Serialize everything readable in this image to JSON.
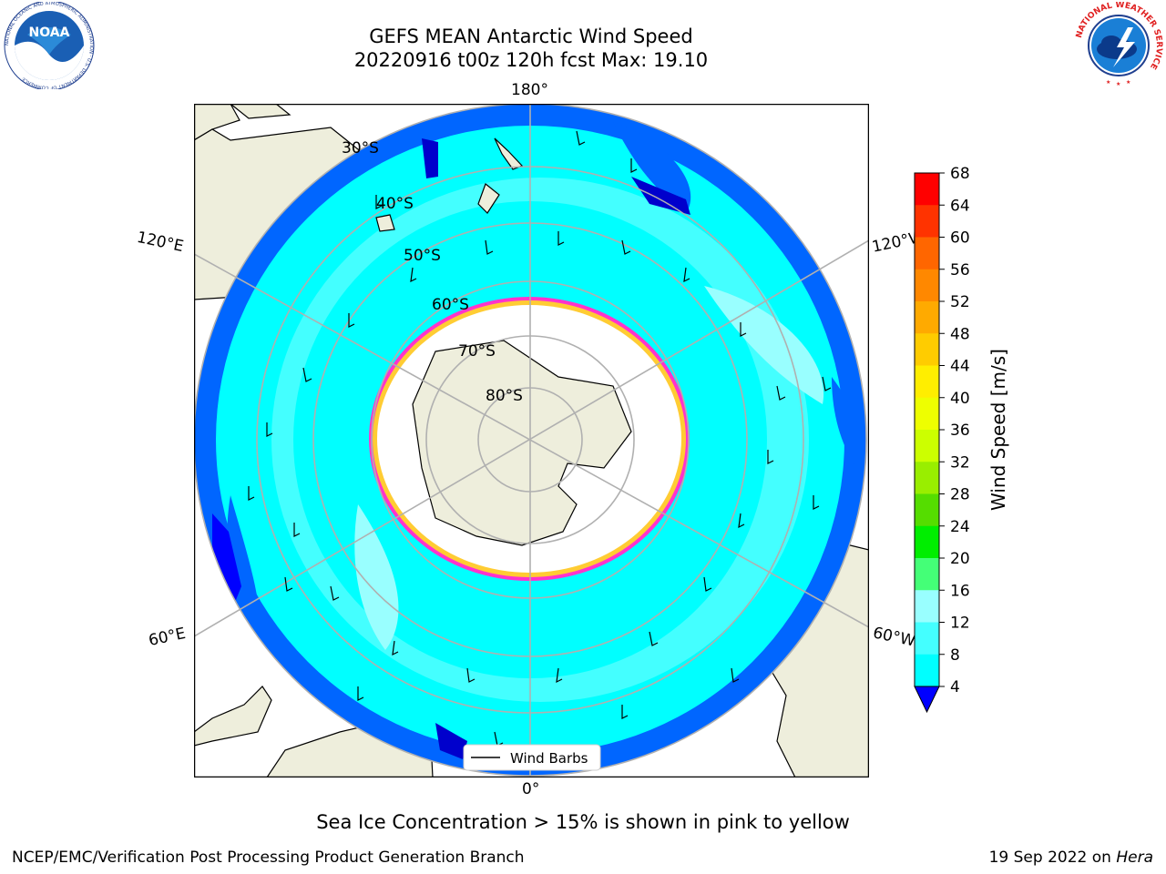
{
  "header": {
    "title_line1": "GEFS MEAN Antarctic Wind Speed",
    "title_line2": "20220916 t00z 120h fcst   Max: 19.10"
  },
  "logos": {
    "noaa_text": "NOAA",
    "noaa_ring": "NATIONAL OCEANIC AND ATMOSPHERIC ADMINISTRATION · U.S. DEPARTMENT OF COMMERCE",
    "nws_ring": "NATIONAL WEATHER SERVICE"
  },
  "map": {
    "lon_labels": {
      "top": "180°",
      "bottom": "0°",
      "left_upper": "120°E",
      "right_upper": "120°W",
      "left_lower": "60°E",
      "right_lower": "60°W"
    },
    "lat_labels": [
      "30°S",
      "40°S",
      "50°S",
      "60°S",
      "70°S",
      "80°S"
    ],
    "legend_label": "Wind Barbs",
    "colors": {
      "ocean_low": "#0066ff",
      "ocean_mid": "#00ffff",
      "ocean_high": "#99ffff",
      "land": "#eeeedc",
      "ice_edge": "#ff33cc",
      "ice_core": "#ffcc33"
    }
  },
  "colorbar": {
    "title": "Wind Speed [m/s]",
    "ticks": [
      "68",
      "64",
      "60",
      "56",
      "52",
      "48",
      "44",
      "40",
      "36",
      "32",
      "28",
      "24",
      "20",
      "16",
      "12",
      "8",
      "4"
    ],
    "colors": [
      "#ff0000",
      "#ff3300",
      "#ff6600",
      "#ff8800",
      "#ffaa00",
      "#ffcc00",
      "#ffee00",
      "#eeff00",
      "#ccff00",
      "#99ee00",
      "#55dd00",
      "#00ee00",
      "#44ff77",
      "#99ffff",
      "#44ffff",
      "#00ffff",
      "#0066ff"
    ],
    "underflow_color": "#0000ff"
  },
  "caption": "Sea Ice Concentration > 15% is shown in pink to yellow",
  "footer": {
    "left": "NCEP/EMC/Verification Post Processing Product Generation Branch",
    "right_date": "19 Sep 2022 on ",
    "right_host": "Hera"
  }
}
